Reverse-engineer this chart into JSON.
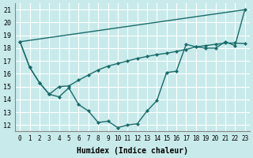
{
  "xlabel": "Humidex (Indice chaleur)",
  "xlim": [
    -0.5,
    23.5
  ],
  "ylim": [
    11.5,
    21.5
  ],
  "yticks": [
    12,
    13,
    14,
    15,
    16,
    17,
    18,
    19,
    20,
    21
  ],
  "xticks": [
    0,
    1,
    2,
    3,
    4,
    5,
    6,
    7,
    8,
    9,
    10,
    11,
    12,
    13,
    14,
    15,
    16,
    17,
    18,
    19,
    20,
    21,
    22,
    23
  ],
  "bg_color": "#c8eaea",
  "line_color": "#1a6b6b",
  "grid_color": "#ffffff",
  "curve1_x": [
    0,
    1,
    2,
    3,
    4,
    5,
    6,
    7,
    8,
    9,
    10,
    11,
    12,
    13,
    14,
    15,
    16,
    17,
    18,
    19,
    20,
    21,
    22,
    23
  ],
  "curve1_y": [
    18.5,
    16.5,
    15.3,
    14.4,
    14.2,
    14.9,
    13.6,
    13.1,
    12.2,
    12.3,
    11.8,
    12.0,
    12.1,
    13.1,
    13.9,
    16.1,
    16.2,
    18.3,
    18.1,
    18.0,
    18.0,
    18.5,
    18.2,
    21.0
  ],
  "curve2_x": [
    0,
    1,
    2,
    3,
    4,
    5,
    6,
    7,
    8,
    9,
    10,
    11,
    12,
    13,
    14,
    15,
    16,
    17,
    18,
    19,
    20,
    21,
    22,
    23
  ],
  "curve2_y": [
    18.5,
    16.5,
    15.3,
    14.4,
    15.0,
    15.05,
    15.5,
    15.9,
    16.3,
    16.6,
    16.8,
    17.0,
    17.2,
    17.35,
    17.5,
    17.6,
    17.75,
    17.9,
    18.1,
    18.2,
    18.3,
    18.4,
    18.4,
    18.35
  ],
  "line3_x": [
    0,
    23
  ],
  "line3_y": [
    18.5,
    21.0
  ],
  "xlabel_fontsize": 7,
  "ytick_fontsize": 6,
  "xtick_fontsize": 5.5
}
